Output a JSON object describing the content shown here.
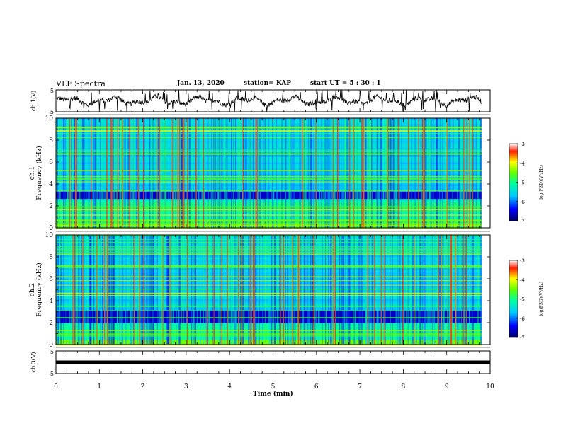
{
  "header": {
    "title": "VLF Spectra",
    "date": "Jan. 13, 2020",
    "station": "station= KAP",
    "start": "start  UT =  5 : 30 : 1"
  },
  "chart_data": [
    {
      "type": "line",
      "panel": "ch1-waveform",
      "ylabel": "ch.1(V)",
      "yticks": [
        "5",
        "-5"
      ],
      "ylim": [
        -5,
        5
      ],
      "xlim": [
        0,
        10
      ]
    },
    {
      "type": "heatmap",
      "panel": "ch1-spectrogram",
      "ylabel": "ch.1\nFrequency (kHz)",
      "ylabel_line1": "ch.1",
      "ylabel_line2": "Frequency (kHz)",
      "yticks": [
        0,
        2,
        4,
        6,
        8,
        10
      ],
      "ylim": [
        0,
        10
      ],
      "xlim": [
        0,
        10
      ],
      "data_xmax": 9.8,
      "colorbar": {
        "label": "log(PSD)(V²/Hz)",
        "ticks": [
          "-3",
          "-4",
          "-5",
          "-6",
          "-7"
        ],
        "range": [
          -7,
          -3
        ]
      }
    },
    {
      "type": "heatmap",
      "panel": "ch2-spectrogram",
      "ylabel_line1": "ch.2",
      "ylabel_line2": "Frequency (kHz)",
      "yticks": [
        0,
        2,
        4,
        6,
        8,
        10
      ],
      "ylim": [
        0,
        10
      ],
      "xlim": [
        0,
        10
      ],
      "data_xmax": 9.8,
      "colorbar": {
        "label": "log(PSD)(V²/Hz)",
        "ticks": [
          "-3",
          "-4",
          "-5",
          "-6",
          "-7"
        ],
        "range": [
          -7,
          -3
        ]
      }
    },
    {
      "type": "line",
      "panel": "ch3-waveform",
      "ylabel": "ch.3(V)",
      "yticks": [
        "5",
        "-5"
      ],
      "ylim": [
        -5,
        5
      ],
      "xlim": [
        0,
        10
      ],
      "constant_value": 0
    }
  ],
  "xaxis": {
    "label": "Time (min)",
    "ticks": [
      "0",
      "1",
      "2",
      "3",
      "4",
      "5",
      "6",
      "7",
      "8",
      "9",
      "10"
    ]
  }
}
